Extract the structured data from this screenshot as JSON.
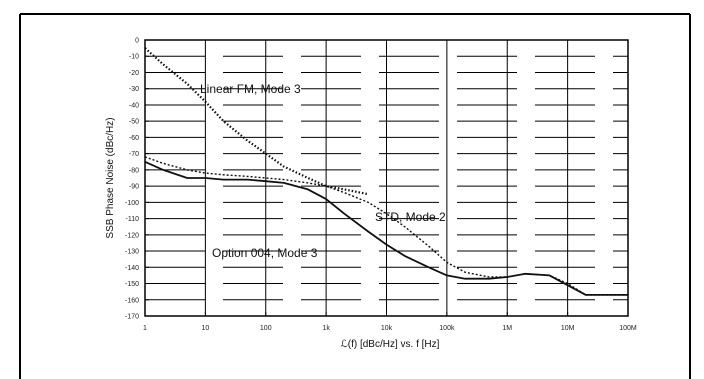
{
  "chart_data": {
    "type": "line",
    "title": "",
    "ylabel": "SSB Phase Noise (dBc/Hz)",
    "xlabel": "ℒ(f)  [dBc/Hz] vs. f [Hz]",
    "x_scale": "log",
    "xlim": [
      1,
      100000000
    ],
    "ylim": [
      -170,
      0
    ],
    "x_tick_labels": [
      "1",
      "10",
      "100",
      "1k",
      "10k",
      "100k",
      "1M",
      "10M",
      "100M"
    ],
    "y_tick_labels": [
      "0",
      "-10",
      "-20",
      "-30",
      "-40",
      "-50",
      "-60",
      "-70",
      "-80",
      "-90",
      "-100",
      "-110",
      "-120",
      "-130",
      "-140",
      "-150",
      "-160",
      "-170"
    ],
    "grid": true,
    "legend": "none",
    "annotations": [
      {
        "text": "Linear FM, Mode 3",
        "series": "Linear FM, Mode 3"
      },
      {
        "text": "STD, Mode 2",
        "series": "STD, Mode 2"
      },
      {
        "text": "Option 004, Mode 3",
        "series": "Option 004, Mode 3"
      }
    ],
    "series": [
      {
        "name": "Linear FM, Mode 3",
        "x": [
          1,
          2,
          5,
          10,
          20,
          50,
          100,
          200,
          500,
          1000,
          2000,
          5000
        ],
        "y": [
          -5,
          -15,
          -27,
          -38,
          -50,
          -62,
          -70,
          -78,
          -85,
          -90,
          -92,
          -95
        ]
      },
      {
        "name": "STD, Mode 2",
        "x": [
          1,
          2,
          5,
          10,
          20,
          50,
          100,
          200,
          500,
          1000,
          2000,
          5000,
          10000,
          20000,
          50000,
          100000,
          200000,
          500000,
          1000000,
          2000000,
          5000000,
          10000000,
          20000000,
          50000000,
          100000000
        ],
        "y": [
          -72,
          -76,
          -80,
          -82,
          -83,
          -84,
          -85,
          -86,
          -88,
          -90,
          -94,
          -100,
          -107,
          -115,
          -127,
          -137,
          -143,
          -146,
          -146,
          -144,
          -145,
          -150,
          -157,
          -157,
          -157
        ]
      },
      {
        "name": "Option 004, Mode 3",
        "x": [
          1,
          2,
          5,
          10,
          20,
          50,
          100,
          200,
          500,
          1000,
          2000,
          5000,
          10000,
          20000,
          50000,
          100000,
          200000,
          500000,
          1000000,
          2000000,
          5000000,
          10000000,
          20000000,
          50000000,
          100000000
        ],
        "y": [
          -75,
          -80,
          -85,
          -85,
          -86,
          -86,
          -87,
          -88,
          -92,
          -98,
          -107,
          -118,
          -126,
          -133,
          -140,
          -145,
          -147,
          -147,
          -146,
          -144,
          -145,
          -151,
          -157,
          -157,
          -157
        ]
      }
    ],
    "colors": {
      "line": "#111111",
      "background": "#ffffff"
    }
  }
}
